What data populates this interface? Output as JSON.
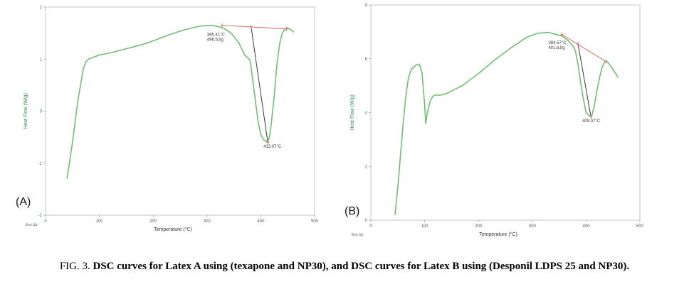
{
  "caption": {
    "label": "FIG. 3. ",
    "text": "DSC curves for Latex A using (texapone and NP30), and DSC curves for Latex B using (Desponil LDPS 25 and NP30)."
  },
  "colors": {
    "curve": "#6fbf6f",
    "baseline": "#e07070",
    "integration": "#222222",
    "axis_label": "#2e8b57"
  },
  "chart_data": [
    {
      "type": "line",
      "panel_label": "(A)",
      "xlabel": "Temperature (°C)",
      "ylabel": "Heat Flow (W/g)",
      "corner_label": "Exo Up",
      "xlim": [
        0,
        500
      ],
      "ylim": [
        -2,
        2
      ],
      "xticks": [
        "0",
        "100",
        "200",
        "300",
        "400",
        "500"
      ],
      "yticks": [
        "-2",
        "-1",
        "0",
        "1",
        "2"
      ],
      "grid": false,
      "series": [
        {
          "x": [
            40,
            50,
            60,
            70,
            75,
            80,
            90,
            100,
            120,
            150,
            180,
            200,
            230,
            260,
            290,
            310,
            330,
            345,
            360,
            370,
            375,
            380,
            385,
            390,
            395,
            400,
            405,
            410,
            413,
            416,
            420,
            425,
            430,
            435,
            440,
            445,
            450,
            455,
            460,
            462
          ],
          "y": [
            -1.3,
            -0.6,
            0.2,
            0.8,
            0.95,
            1.0,
            1.04,
            1.08,
            1.12,
            1.2,
            1.28,
            1.35,
            1.47,
            1.57,
            1.64,
            1.65,
            1.6,
            1.5,
            1.3,
            1.08,
            1.03,
            0.98,
            0.6,
            0.2,
            -0.2,
            -0.45,
            -0.55,
            -0.58,
            -0.6,
            -0.5,
            -0.2,
            0.3,
            0.9,
            1.3,
            1.5,
            1.58,
            1.6,
            1.57,
            1.53,
            1.52
          ]
        }
      ],
      "baseline_x": [
        328,
        448
      ],
      "baseline_y": [
        1.65,
        1.58
      ],
      "integration_from_x": 382,
      "annotations": [
        {
          "text": "385.41°C",
          "x": 300,
          "y": 1.45,
          "line": 0
        },
        {
          "text": "496.5J/g",
          "x": 300,
          "y": 1.45,
          "line": 1
        },
        {
          "text": "413.07°C",
          "x": 405,
          "y": -0.7,
          "line": 0
        }
      ],
      "markers": [
        {
          "x": 328,
          "y": 1.65
        },
        {
          "x": 382,
          "y": 1.62
        },
        {
          "x": 448,
          "y": 1.58
        },
        {
          "x": 413,
          "y": -0.6
        }
      ]
    },
    {
      "type": "line",
      "panel_label": "(B)",
      "xlabel": "Temperature (°C)",
      "ylabel": "Heat Flow (W/g)",
      "corner_label": "Exo Up",
      "xlim": [
        0,
        500
      ],
      "ylim": [
        0,
        8
      ],
      "xticks": [
        "0",
        "100",
        "200",
        "300",
        "400",
        "500"
      ],
      "yticks": [
        "0",
        "2",
        "4",
        "6",
        "8"
      ],
      "grid": false,
      "series": [
        {
          "x": [
            45,
            50,
            55,
            60,
            65,
            70,
            75,
            80,
            85,
            90,
            95,
            100,
            102,
            105,
            110,
            115,
            120,
            130,
            140,
            150,
            170,
            200,
            230,
            260,
            290,
            310,
            330,
            345,
            355,
            365,
            375,
            380,
            385,
            390,
            395,
            400,
            405,
            410,
            415,
            420,
            425,
            430,
            435,
            440,
            445,
            450,
            455,
            460
          ],
          "y": [
            0.2,
            1.2,
            2.4,
            3.6,
            4.6,
            5.3,
            5.6,
            5.7,
            5.78,
            5.8,
            5.5,
            4.3,
            3.6,
            4.0,
            4.4,
            4.6,
            4.65,
            4.65,
            4.7,
            4.8,
            5.0,
            5.45,
            5.95,
            6.4,
            6.8,
            6.95,
            6.98,
            6.9,
            6.85,
            6.7,
            6.5,
            6.3,
            5.8,
            5.1,
            4.5,
            4.0,
            3.9,
            3.85,
            4.2,
            4.8,
            5.3,
            5.7,
            5.9,
            5.88,
            5.75,
            5.6,
            5.45,
            5.3
          ]
        }
      ],
      "baseline_x": [
        355,
        437
      ],
      "baseline_y": [
        6.9,
        5.9
      ],
      "integration_from_x": 385,
      "annotations": [
        {
          "text": "384.57°C",
          "x": 330,
          "y": 6.55,
          "line": 0
        },
        {
          "text": "401.6J/g",
          "x": 330,
          "y": 6.55,
          "line": 1
        },
        {
          "text": "409.07°C",
          "x": 393,
          "y": 3.65,
          "line": 0
        }
      ],
      "markers": [
        {
          "x": 355,
          "y": 6.9
        },
        {
          "x": 385,
          "y": 6.55
        },
        {
          "x": 437,
          "y": 5.9
        },
        {
          "x": 409,
          "y": 3.85
        }
      ]
    }
  ]
}
